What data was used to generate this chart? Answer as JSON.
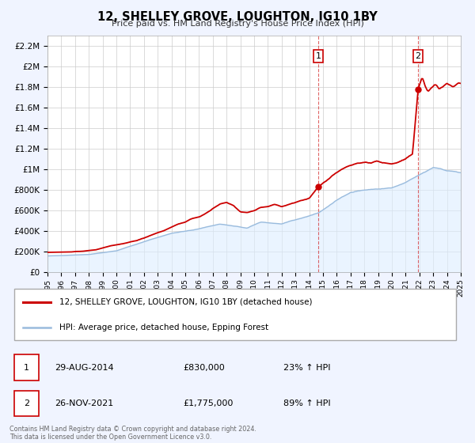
{
  "title": "12, SHELLEY GROVE, LOUGHTON, IG10 1BY",
  "subtitle": "Price paid vs. HM Land Registry's House Price Index (HPI)",
  "legend_line1": "12, SHELLEY GROVE, LOUGHTON, IG10 1BY (detached house)",
  "legend_line2": "HPI: Average price, detached house, Epping Forest",
  "annotation1_label": "1",
  "annotation1_date": "29-AUG-2014",
  "annotation1_price": "£830,000",
  "annotation1_hpi": "23% ↑ HPI",
  "annotation2_label": "2",
  "annotation2_date": "26-NOV-2021",
  "annotation2_price": "£1,775,000",
  "annotation2_hpi": "89% ↑ HPI",
  "marker1_year": 2014.66,
  "marker1_value": 830000,
  "marker2_year": 2021.9,
  "marker2_value": 1775000,
  "vline1_year": 2014.66,
  "vline2_year": 2021.9,
  "red_color": "#cc0000",
  "blue_color": "#99bbdd",
  "blue_fill_color": "#ddeeff",
  "background_color": "#f0f4ff",
  "plot_bg_color": "#ffffff",
  "grid_color": "#cccccc",
  "footer_text": "Contains HM Land Registry data © Crown copyright and database right 2024.\nThis data is licensed under the Open Government Licence v3.0.",
  "ylim_max": 2300000,
  "ylim_min": 0,
  "xlim_min": 1995,
  "xlim_max": 2025,
  "hpi_waypoints_years": [
    1995.0,
    1998.0,
    2000.0,
    2002.5,
    2004.0,
    2005.5,
    2007.5,
    2008.5,
    2009.5,
    2010.5,
    2012.0,
    2013.0,
    2014.0,
    2014.7,
    2016.0,
    2017.0,
    2018.0,
    2019.0,
    2020.0,
    2021.0,
    2021.9,
    2022.5,
    2023.0,
    2023.5,
    2024.0,
    2024.5,
    2025.0
  ],
  "hpi_waypoints_vals": [
    160000,
    175000,
    210000,
    320000,
    380000,
    410000,
    470000,
    450000,
    430000,
    490000,
    470000,
    510000,
    550000,
    580000,
    700000,
    780000,
    800000,
    810000,
    820000,
    870000,
    940000,
    980000,
    1020000,
    1010000,
    990000,
    980000,
    970000
  ],
  "red_waypoints_years": [
    1995.0,
    1996.5,
    1997.5,
    1998.5,
    1999.5,
    2000.5,
    2001.5,
    2002.5,
    2003.5,
    2004.5,
    2005.0,
    2005.5,
    2006.0,
    2006.5,
    2007.0,
    2007.5,
    2008.0,
    2008.5,
    2009.0,
    2009.5,
    2010.0,
    2010.5,
    2011.0,
    2011.5,
    2012.0,
    2012.5,
    2013.0,
    2013.5,
    2014.0,
    2014.66,
    2015.0,
    2015.5,
    2016.0,
    2016.5,
    2017.0,
    2017.5,
    2018.0,
    2018.5,
    2019.0,
    2019.5,
    2020.0,
    2020.5,
    2021.0,
    2021.5,
    2021.9,
    2022.0,
    2022.2,
    2022.4,
    2022.6,
    2022.8,
    2023.0,
    2023.2,
    2023.4,
    2023.6,
    2023.8,
    2024.0,
    2024.2,
    2024.5,
    2024.8,
    2025.0
  ],
  "red_waypoints_vals": [
    195000,
    198000,
    205000,
    220000,
    255000,
    280000,
    310000,
    360000,
    410000,
    470000,
    490000,
    520000,
    540000,
    570000,
    620000,
    660000,
    680000,
    650000,
    590000,
    580000,
    600000,
    630000,
    640000,
    660000,
    640000,
    660000,
    680000,
    700000,
    720000,
    830000,
    870000,
    920000,
    970000,
    1010000,
    1040000,
    1060000,
    1070000,
    1060000,
    1080000,
    1060000,
    1050000,
    1070000,
    1100000,
    1150000,
    1775000,
    1820000,
    1900000,
    1820000,
    1760000,
    1780000,
    1800000,
    1820000,
    1780000,
    1790000,
    1810000,
    1830000,
    1820000,
    1810000,
    1830000,
    1830000
  ]
}
